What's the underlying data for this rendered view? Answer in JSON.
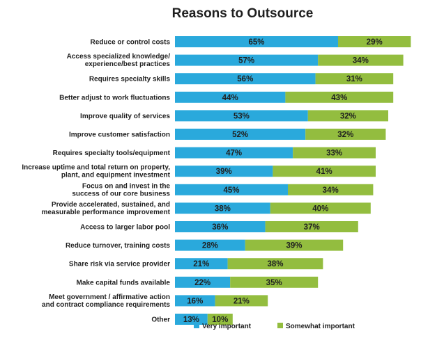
{
  "chart_data": {
    "type": "bar",
    "orientation": "horizontal",
    "stacked": true,
    "title": "Reasons to Outsource",
    "categories": [
      [
        "Reduce or control costs"
      ],
      [
        "Access specialized knowledge/",
        "experience/best practices"
      ],
      [
        "Requires specialty skills"
      ],
      [
        "Better adjust to work fluctuations"
      ],
      [
        "Improve quality of services"
      ],
      [
        "Improve customer satisfaction"
      ],
      [
        "Requires specialty tools/equipment"
      ],
      [
        "Increase uptime and total return on property,",
        "plant, and equipment investment"
      ],
      [
        "Focus on and invest in the",
        "success of our core business"
      ],
      [
        "Provide accelerated, sustained, and",
        "measurable performance improvement"
      ],
      [
        "Access to larger labor pool"
      ],
      [
        "Reduce turnover, training costs"
      ],
      [
        "Share risk via service provider"
      ],
      [
        "Make capital funds available"
      ],
      [
        "Meet government / affirmative action",
        "and contract compliance requirements"
      ],
      [
        "Other"
      ]
    ],
    "series": [
      {
        "name": "Very important",
        "color": "#2aa9dc",
        "values": [
          65,
          57,
          56,
          44,
          53,
          52,
          47,
          39,
          45,
          38,
          36,
          28,
          21,
          22,
          16,
          13
        ]
      },
      {
        "name": "Somewhat important",
        "color": "#93bd3f",
        "values": [
          29,
          34,
          31,
          43,
          32,
          32,
          33,
          41,
          34,
          40,
          37,
          39,
          38,
          35,
          21,
          10
        ]
      }
    ],
    "value_suffix": "%",
    "xlim": [
      0,
      100
    ],
    "grid": false,
    "legend": "bottom"
  }
}
